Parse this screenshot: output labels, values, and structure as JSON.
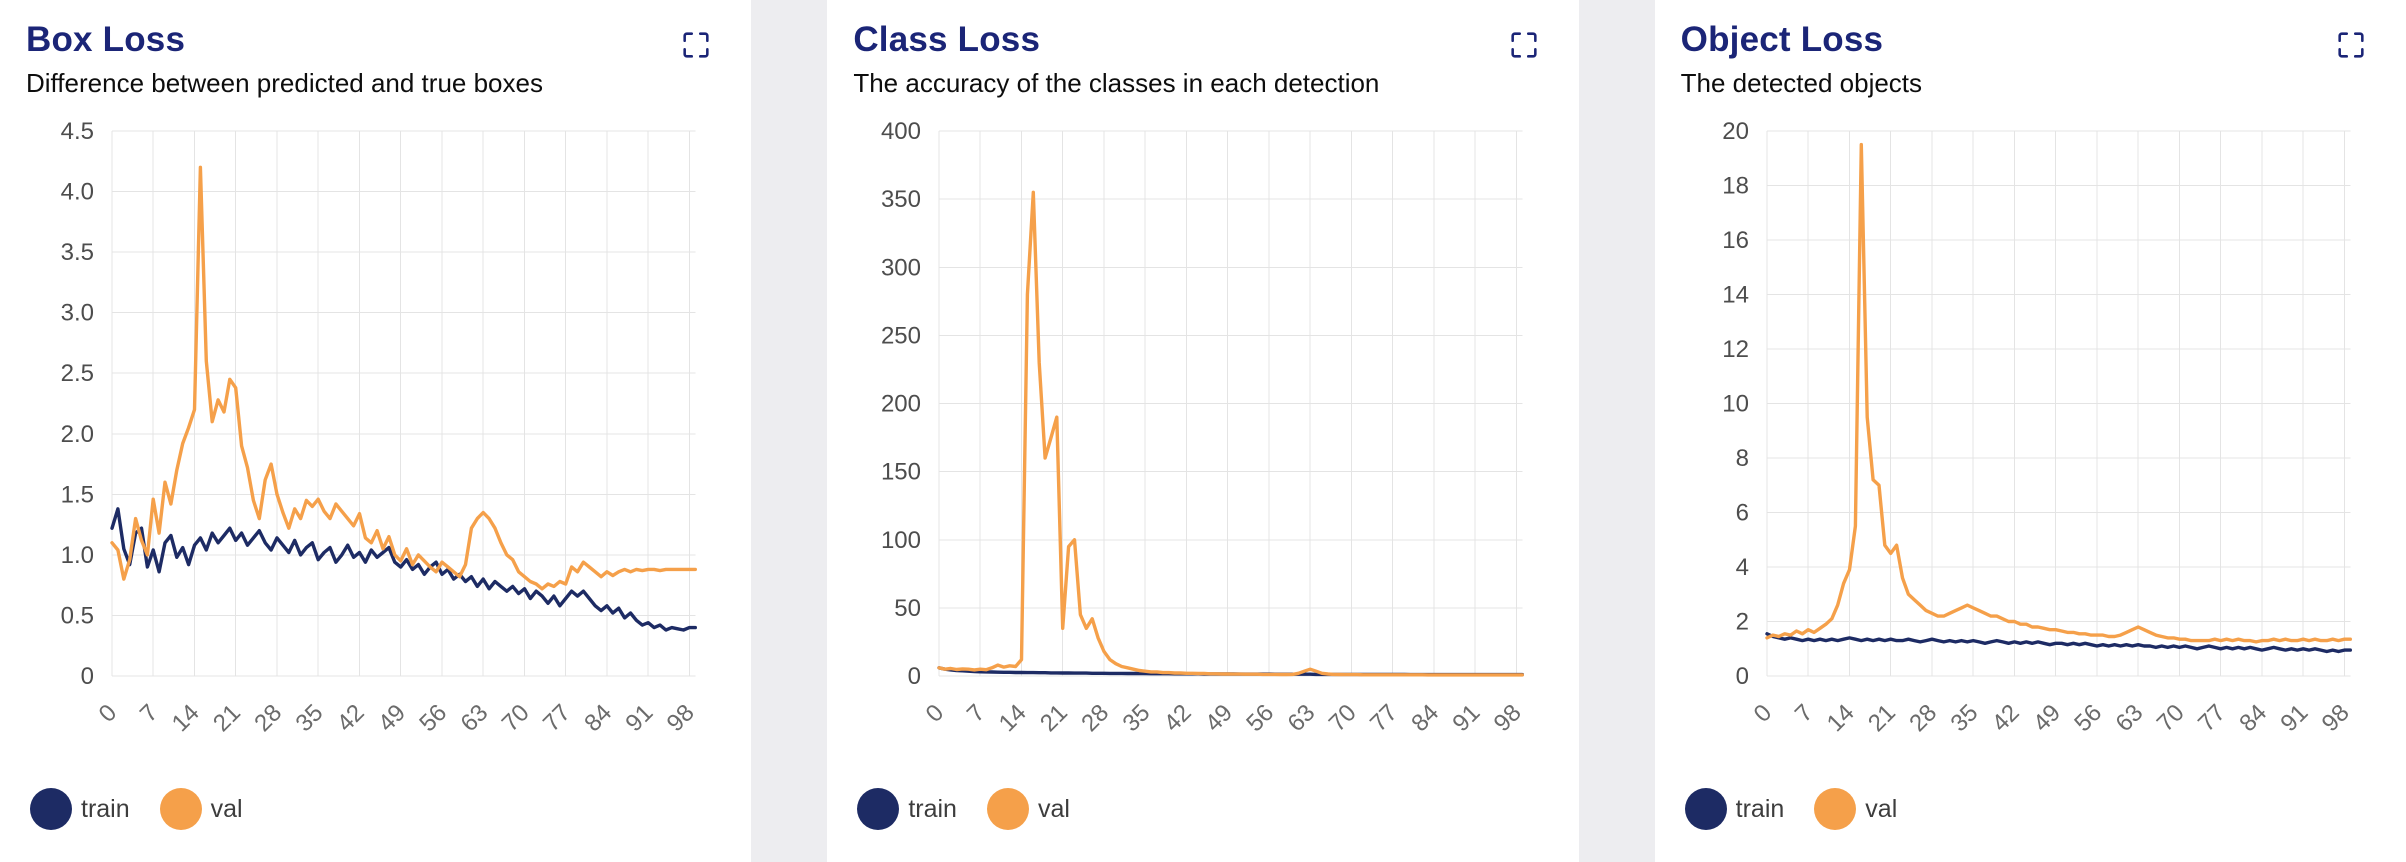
{
  "theme": {
    "title_color": "#1b2577",
    "grid_color": "#e4e4e4",
    "train_color": "#1d2b64",
    "val_color": "#f5a04a",
    "page_background": "#ededf0",
    "card_background": "#ffffff"
  },
  "chart_data": [
    {
      "type": "line",
      "title": "Box Loss",
      "subtitle": "Difference between predicted and true boxes",
      "xlabel": "",
      "ylabel": "",
      "x_range": [
        0,
        99
      ],
      "xticks": [
        0,
        7,
        14,
        21,
        28,
        35,
        42,
        49,
        56,
        63,
        70,
        77,
        84,
        91,
        98
      ],
      "ylim": [
        0,
        4.5
      ],
      "yticks": [
        0,
        0.5,
        1.0,
        1.5,
        2.0,
        2.5,
        3.0,
        3.5,
        4.0,
        4.5
      ],
      "ytick_labels": [
        "0",
        "0.5",
        "1.0",
        "1.5",
        "2.0",
        "2.5",
        "3.0",
        "3.5",
        "4.0",
        "4.5"
      ],
      "grid": true,
      "legend_position": "bottom",
      "series": [
        {
          "name": "train",
          "color": "#1d2b64",
          "values": [
            1.22,
            1.38,
            1.05,
            0.92,
            1.18,
            1.22,
            0.9,
            1.04,
            0.86,
            1.1,
            1.16,
            0.98,
            1.06,
            0.92,
            1.08,
            1.14,
            1.04,
            1.18,
            1.1,
            1.16,
            1.22,
            1.12,
            1.18,
            1.08,
            1.14,
            1.2,
            1.1,
            1.04,
            1.14,
            1.08,
            1.02,
            1.12,
            1.0,
            1.06,
            1.1,
            0.96,
            1.02,
            1.06,
            0.94,
            1.0,
            1.08,
            0.98,
            1.02,
            0.94,
            1.04,
            0.98,
            1.02,
            1.06,
            0.94,
            0.9,
            0.96,
            0.88,
            0.92,
            0.84,
            0.9,
            0.94,
            0.84,
            0.88,
            0.8,
            0.84,
            0.78,
            0.82,
            0.74,
            0.8,
            0.72,
            0.78,
            0.74,
            0.7,
            0.74,
            0.68,
            0.72,
            0.64,
            0.7,
            0.66,
            0.6,
            0.66,
            0.58,
            0.64,
            0.7,
            0.66,
            0.7,
            0.64,
            0.58,
            0.54,
            0.58,
            0.52,
            0.56,
            0.48,
            0.52,
            0.46,
            0.42,
            0.44,
            0.4,
            0.42,
            0.38,
            0.4,
            0.39,
            0.38,
            0.4,
            0.4
          ]
        },
        {
          "name": "val",
          "color": "#f5a04a",
          "values": [
            1.1,
            1.04,
            0.8,
            0.96,
            1.3,
            1.12,
            1.0,
            1.46,
            1.18,
            1.6,
            1.42,
            1.7,
            1.92,
            2.05,
            2.2,
            4.2,
            2.6,
            2.1,
            2.28,
            2.18,
            2.45,
            2.38,
            1.9,
            1.72,
            1.45,
            1.3,
            1.62,
            1.75,
            1.5,
            1.35,
            1.22,
            1.38,
            1.3,
            1.45,
            1.4,
            1.46,
            1.36,
            1.3,
            1.42,
            1.36,
            1.3,
            1.24,
            1.34,
            1.14,
            1.1,
            1.2,
            1.05,
            1.15,
            1.0,
            0.95,
            1.05,
            0.92,
            1.0,
            0.95,
            0.9,
            0.86,
            0.94,
            0.9,
            0.86,
            0.82,
            0.92,
            1.22,
            1.3,
            1.35,
            1.3,
            1.22,
            1.1,
            1.0,
            0.96,
            0.86,
            0.82,
            0.78,
            0.76,
            0.72,
            0.76,
            0.74,
            0.78,
            0.76,
            0.9,
            0.86,
            0.94,
            0.9,
            0.86,
            0.82,
            0.86,
            0.83,
            0.86,
            0.88,
            0.86,
            0.88,
            0.87,
            0.88,
            0.88,
            0.87,
            0.88,
            0.88,
            0.88,
            0.88,
            0.88,
            0.88
          ]
        }
      ]
    },
    {
      "type": "line",
      "title": "Class Loss",
      "subtitle": "The accuracy of the classes in each detection",
      "xlabel": "",
      "ylabel": "",
      "x_range": [
        0,
        99
      ],
      "xticks": [
        0,
        7,
        14,
        21,
        28,
        35,
        42,
        49,
        56,
        63,
        70,
        77,
        84,
        91,
        98
      ],
      "ylim": [
        0,
        400
      ],
      "yticks": [
        0,
        50,
        100,
        150,
        200,
        250,
        300,
        350,
        400
      ],
      "ytick_labels": [
        "0",
        "50",
        "100",
        "150",
        "200",
        "250",
        "300",
        "350",
        "400"
      ],
      "grid": true,
      "legend_position": "bottom",
      "series": [
        {
          "name": "train",
          "color": "#1d2b64",
          "values": [
            6,
            5,
            4.5,
            4,
            3.8,
            3.5,
            3.3,
            3.1,
            3.0,
            2.9,
            2.8,
            2.7,
            2.7,
            2.6,
            2.6,
            2.5,
            2.5,
            2.4,
            2.4,
            2.3,
            2.3,
            2.2,
            2.2,
            2.1,
            2.1,
            2.1,
            2.0,
            2.0,
            2.0,
            1.9,
            1.9,
            1.9,
            1.8,
            1.8,
            1.8,
            1.8,
            1.7,
            1.7,
            1.7,
            1.7,
            1.6,
            1.6,
            1.6,
            1.6,
            1.6,
            1.5,
            1.5,
            1.5,
            1.5,
            1.5,
            1.5,
            1.4,
            1.4,
            1.4,
            1.4,
            1.4,
            1.4,
            1.3,
            1.3,
            1.3,
            1.3,
            1.3,
            1.3,
            1.3,
            1.2,
            1.2,
            1.2,
            1.2,
            1.2,
            1.2,
            1.2,
            1.2,
            1.1,
            1.1,
            1.1,
            1.1,
            1.1,
            1.1,
            1.1,
            1.1,
            1.0,
            1.0,
            1.0,
            1.0,
            1.0,
            1.0,
            1.0,
            1.0,
            1.0,
            1.0,
            1.0,
            1.0,
            1.0,
            1.0,
            1.0,
            1.0,
            1.0,
            1.0,
            1.0,
            1.0
          ]
        },
        {
          "name": "val",
          "color": "#f5a04a",
          "values": [
            6,
            5,
            5.5,
            4.8,
            5.2,
            5,
            4.5,
            5,
            4.6,
            6,
            8,
            6.5,
            7.5,
            7,
            12,
            280,
            355,
            230,
            160,
            175,
            190,
            35,
            95,
            100,
            45,
            35,
            42,
            28,
            18,
            12,
            9,
            7,
            6,
            5,
            4,
            3.5,
            3,
            3,
            2.5,
            2.5,
            2.2,
            2.2,
            2,
            2,
            1.8,
            1.8,
            1.6,
            1.6,
            1.5,
            1.5,
            1.4,
            1.4,
            1.3,
            1.3,
            1.3,
            1.2,
            1.2,
            1.2,
            1.1,
            1.1,
            1.2,
            2,
            3.5,
            5,
            3.5,
            2,
            1.5,
            1.2,
            1.1,
            1.0,
            1.0,
            1.0,
            0.9,
            0.9,
            0.9,
            0.9,
            0.9,
            0.9,
            0.9,
            0.9,
            0.9,
            0.9,
            0.9,
            0.8,
            0.8,
            0.8,
            0.8,
            0.8,
            0.8,
            0.8,
            0.8,
            0.8,
            0.8,
            0.8,
            0.8,
            0.8,
            0.8,
            0.8,
            0.8,
            0.8
          ]
        }
      ]
    },
    {
      "type": "line",
      "title": "Object Loss",
      "subtitle": "The detected objects",
      "xlabel": "",
      "ylabel": "",
      "x_range": [
        0,
        99
      ],
      "xticks": [
        0,
        7,
        14,
        21,
        28,
        35,
        42,
        49,
        56,
        63,
        70,
        77,
        84,
        91,
        98
      ],
      "ylim": [
        0,
        20
      ],
      "yticks": [
        0,
        2,
        4,
        6,
        8,
        10,
        12,
        14,
        16,
        18,
        20
      ],
      "ytick_labels": [
        "0",
        "2",
        "4",
        "6",
        "8",
        "10",
        "12",
        "14",
        "16",
        "18",
        "20"
      ],
      "grid": true,
      "legend_position": "bottom",
      "series": [
        {
          "name": "train",
          "color": "#1d2b64",
          "values": [
            1.55,
            1.45,
            1.4,
            1.35,
            1.4,
            1.35,
            1.3,
            1.35,
            1.3,
            1.35,
            1.3,
            1.35,
            1.3,
            1.35,
            1.4,
            1.35,
            1.3,
            1.35,
            1.3,
            1.35,
            1.3,
            1.35,
            1.3,
            1.3,
            1.35,
            1.3,
            1.25,
            1.3,
            1.35,
            1.3,
            1.25,
            1.3,
            1.25,
            1.3,
            1.25,
            1.3,
            1.25,
            1.2,
            1.25,
            1.3,
            1.25,
            1.2,
            1.25,
            1.2,
            1.25,
            1.2,
            1.25,
            1.2,
            1.15,
            1.2,
            1.2,
            1.15,
            1.2,
            1.15,
            1.2,
            1.15,
            1.1,
            1.15,
            1.1,
            1.15,
            1.1,
            1.15,
            1.1,
            1.15,
            1.1,
            1.1,
            1.05,
            1.1,
            1.05,
            1.1,
            1.05,
            1.1,
            1.05,
            1.0,
            1.05,
            1.1,
            1.05,
            1.0,
            1.05,
            1.0,
            1.05,
            1.0,
            1.05,
            1.0,
            0.95,
            1.0,
            1.05,
            1.0,
            0.95,
            1.0,
            0.95,
            1.0,
            0.95,
            1.0,
            0.95,
            0.9,
            0.95,
            0.9,
            0.95,
            0.95
          ]
        },
        {
          "name": "val",
          "color": "#f5a04a",
          "values": [
            1.4,
            1.5,
            1.45,
            1.55,
            1.5,
            1.65,
            1.55,
            1.7,
            1.6,
            1.75,
            1.9,
            2.1,
            2.6,
            3.4,
            3.9,
            5.5,
            19.5,
            9.5,
            7.2,
            7.0,
            4.8,
            4.5,
            4.8,
            3.6,
            3.0,
            2.8,
            2.6,
            2.4,
            2.3,
            2.2,
            2.2,
            2.3,
            2.4,
            2.5,
            2.6,
            2.5,
            2.4,
            2.3,
            2.2,
            2.2,
            2.1,
            2.0,
            2.0,
            1.9,
            1.9,
            1.8,
            1.8,
            1.75,
            1.7,
            1.7,
            1.65,
            1.6,
            1.6,
            1.55,
            1.55,
            1.5,
            1.5,
            1.5,
            1.45,
            1.45,
            1.5,
            1.6,
            1.7,
            1.8,
            1.7,
            1.6,
            1.5,
            1.45,
            1.4,
            1.4,
            1.35,
            1.35,
            1.3,
            1.3,
            1.3,
            1.3,
            1.35,
            1.3,
            1.35,
            1.3,
            1.35,
            1.3,
            1.3,
            1.25,
            1.3,
            1.3,
            1.35,
            1.3,
            1.35,
            1.3,
            1.3,
            1.35,
            1.3,
            1.35,
            1.3,
            1.3,
            1.35,
            1.3,
            1.35,
            1.35
          ]
        }
      ]
    }
  ]
}
